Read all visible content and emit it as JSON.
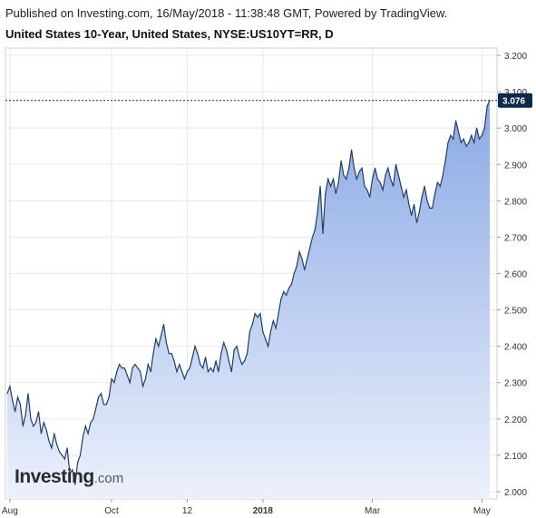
{
  "header": {
    "published": "Published on Investing.com, 16/May/2018 - 11:38:48 GMT, Powered by TradingView.",
    "title": "United States 10-Year, United States, NYSE:US10YT=RR, D"
  },
  "logo": {
    "main": "Investing",
    "suffix": ".com"
  },
  "colors": {
    "line": "#1f3f66",
    "fill_top": "#8aa9e4",
    "fill_bottom": "#ecf1fc",
    "label_bg": "#0d2a4e",
    "grid": "#e9e9e9"
  },
  "chart_data": {
    "type": "area",
    "ylim": [
      1.98,
      3.22
    ],
    "y_ticks": [
      "3.200",
      "3.100",
      "3.000",
      "2.900",
      "2.800",
      "2.700",
      "2.600",
      "2.500",
      "2.400",
      "2.300",
      "2.200",
      "2.100",
      "2.000"
    ],
    "x_ticks": [
      {
        "label": "Aug",
        "i": 1,
        "bold": false
      },
      {
        "label": "Oct",
        "i": 40,
        "bold": false
      },
      {
        "label": "12",
        "i": 69,
        "bold": false
      },
      {
        "label": "2018",
        "i": 98,
        "bold": true
      },
      {
        "label": "Mar",
        "i": 140,
        "bold": false
      },
      {
        "label": "May",
        "i": 182,
        "bold": false
      }
    ],
    "last_value": "3.076",
    "values": [
      2.27,
      2.29,
      2.25,
      2.22,
      2.26,
      2.24,
      2.18,
      2.21,
      2.27,
      2.2,
      2.18,
      2.19,
      2.22,
      2.16,
      2.19,
      2.17,
      2.14,
      2.12,
      2.16,
      2.13,
      2.11,
      2.1,
      2.09,
      2.12,
      2.05,
      2.06,
      2.02,
      2.08,
      2.1,
      2.15,
      2.18,
      2.16,
      2.19,
      2.2,
      2.23,
      2.26,
      2.27,
      2.24,
      2.24,
      2.26,
      2.31,
      2.3,
      2.33,
      2.35,
      2.34,
      2.34,
      2.32,
      2.3,
      2.34,
      2.35,
      2.34,
      2.33,
      2.29,
      2.31,
      2.35,
      2.33,
      2.38,
      2.42,
      2.4,
      2.43,
      2.46,
      2.41,
      2.38,
      2.38,
      2.36,
      2.33,
      2.35,
      2.33,
      2.31,
      2.33,
      2.34,
      2.37,
      2.4,
      2.38,
      2.35,
      2.34,
      2.37,
      2.33,
      2.34,
      2.33,
      2.36,
      2.33,
      2.38,
      2.41,
      2.39,
      2.36,
      2.33,
      2.39,
      2.4,
      2.37,
      2.35,
      2.36,
      2.38,
      2.44,
      2.46,
      2.49,
      2.48,
      2.49,
      2.44,
      2.42,
      2.4,
      2.44,
      2.47,
      2.45,
      2.49,
      2.53,
      2.55,
      2.54,
      2.56,
      2.57,
      2.6,
      2.62,
      2.66,
      2.64,
      2.61,
      2.64,
      2.67,
      2.7,
      2.72,
      2.77,
      2.84,
      2.71,
      2.82,
      2.86,
      2.84,
      2.86,
      2.82,
      2.85,
      2.91,
      2.87,
      2.86,
      2.89,
      2.94,
      2.89,
      2.86,
      2.88,
      2.89,
      2.84,
      2.83,
      2.81,
      2.86,
      2.89,
      2.86,
      2.85,
      2.83,
      2.87,
      2.89,
      2.86,
      2.84,
      2.9,
      2.87,
      2.84,
      2.81,
      2.83,
      2.79,
      2.76,
      2.79,
      2.74,
      2.77,
      2.81,
      2.84,
      2.8,
      2.78,
      2.78,
      2.82,
      2.85,
      2.84,
      2.87,
      2.91,
      2.96,
      2.98,
      2.97,
      3.02,
      2.99,
      2.96,
      2.97,
      2.95,
      2.96,
      2.98,
      2.96,
      3.0,
      2.97,
      2.98,
      3.0,
      3.06,
      3.076
    ]
  }
}
